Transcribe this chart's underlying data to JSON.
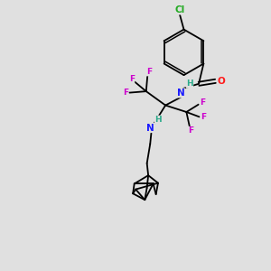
{
  "bg_color": "#e0e0e0",
  "bond_color": "#000000",
  "bond_width": 1.3,
  "atom_colors": {
    "C": "#000000",
    "H": "#2aaa8a",
    "N": "#1a1aff",
    "O": "#ff1a1a",
    "F": "#cc00cc",
    "Cl": "#22aa22"
  },
  "fs": 7.5,
  "fsm": 6.5
}
